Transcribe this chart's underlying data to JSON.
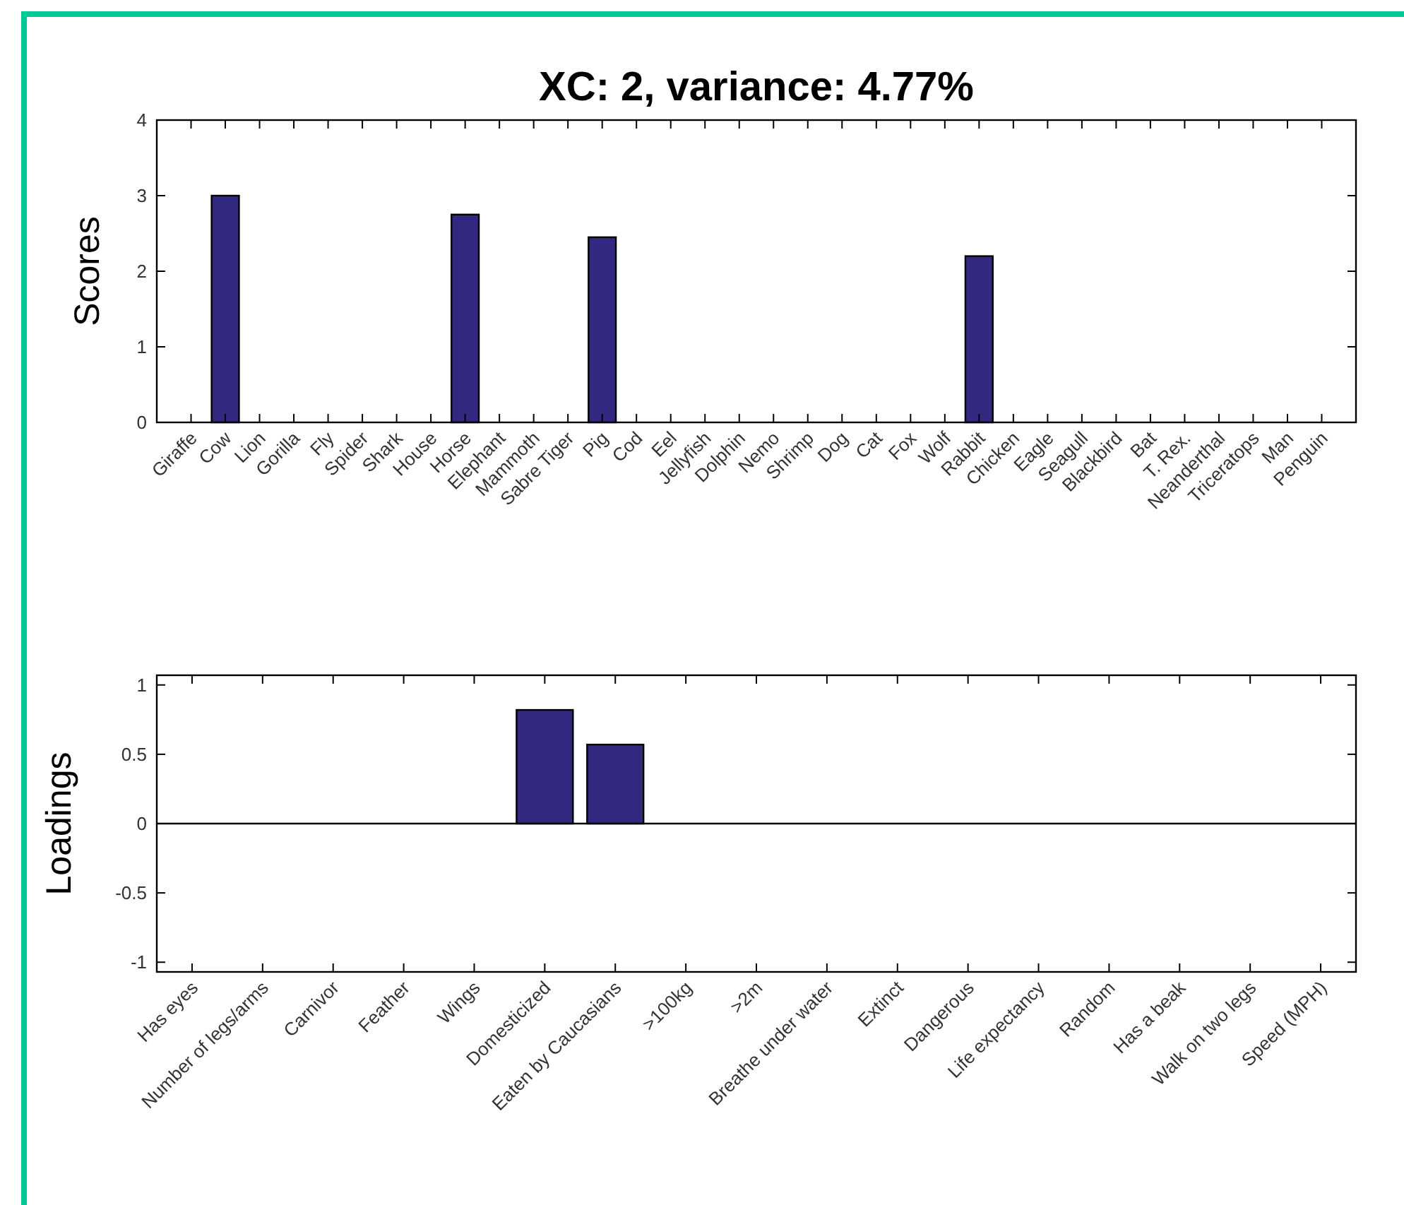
{
  "chart_data": [
    {
      "type": "bar",
      "title": "XC: 2, variance: 4.77%",
      "ylabel": "Scores",
      "categories": [
        "Giraffe",
        "Cow",
        "Lion",
        "Gorilla",
        "Fly",
        "Spider",
        "Shark",
        "House",
        "Horse",
        "Elephant",
        "Mammoth",
        "Sabre Tiger",
        "Pig",
        "Cod",
        "Eel",
        "Jellyfish",
        "Dolphin",
        "Nemo",
        "Shrimp",
        "Dog",
        "Cat",
        "Fox",
        "Wolf",
        "Rabbit",
        "Chicken",
        "Eagle",
        "Seagull",
        "Blackbird",
        "Bat",
        "T. Rex.",
        "Neanderthal",
        "Triceratops",
        "Man",
        "Penguin"
      ],
      "values": [
        0,
        3.0,
        0,
        0,
        0,
        0,
        0,
        0,
        2.75,
        0,
        0,
        0,
        2.45,
        0,
        0,
        0,
        0,
        0,
        0,
        0,
        0,
        0,
        0,
        2.2,
        0,
        0,
        0,
        0,
        0,
        0,
        0,
        0,
        0,
        0
      ],
      "color": "#32287f",
      "ylim": [
        0,
        4
      ],
      "yticks": [
        0,
        1,
        2,
        3,
        4
      ]
    },
    {
      "type": "bar",
      "ylabel": "Loadings",
      "categories": [
        "Has eyes",
        "Number of legs/arms",
        "Carnivor",
        "Feather",
        "Wings",
        "Domesticized",
        "Eaten by Caucasians",
        ">100kg",
        ">2m",
        "Breathe under water",
        "Extinct",
        "Dangerous",
        "Life expectancy",
        "Random",
        "Has a beak",
        "Walk on two legs",
        "Speed (MPH)"
      ],
      "values": [
        0,
        0,
        0,
        0,
        0,
        0.82,
        0.57,
        0,
        0,
        0,
        0,
        0,
        0,
        0,
        0,
        0,
        0
      ],
      "color": "#32287f",
      "ylim": [
        -1.07,
        1.07
      ],
      "yticks": [
        -1,
        -0.5,
        0,
        0.5,
        1
      ]
    }
  ]
}
